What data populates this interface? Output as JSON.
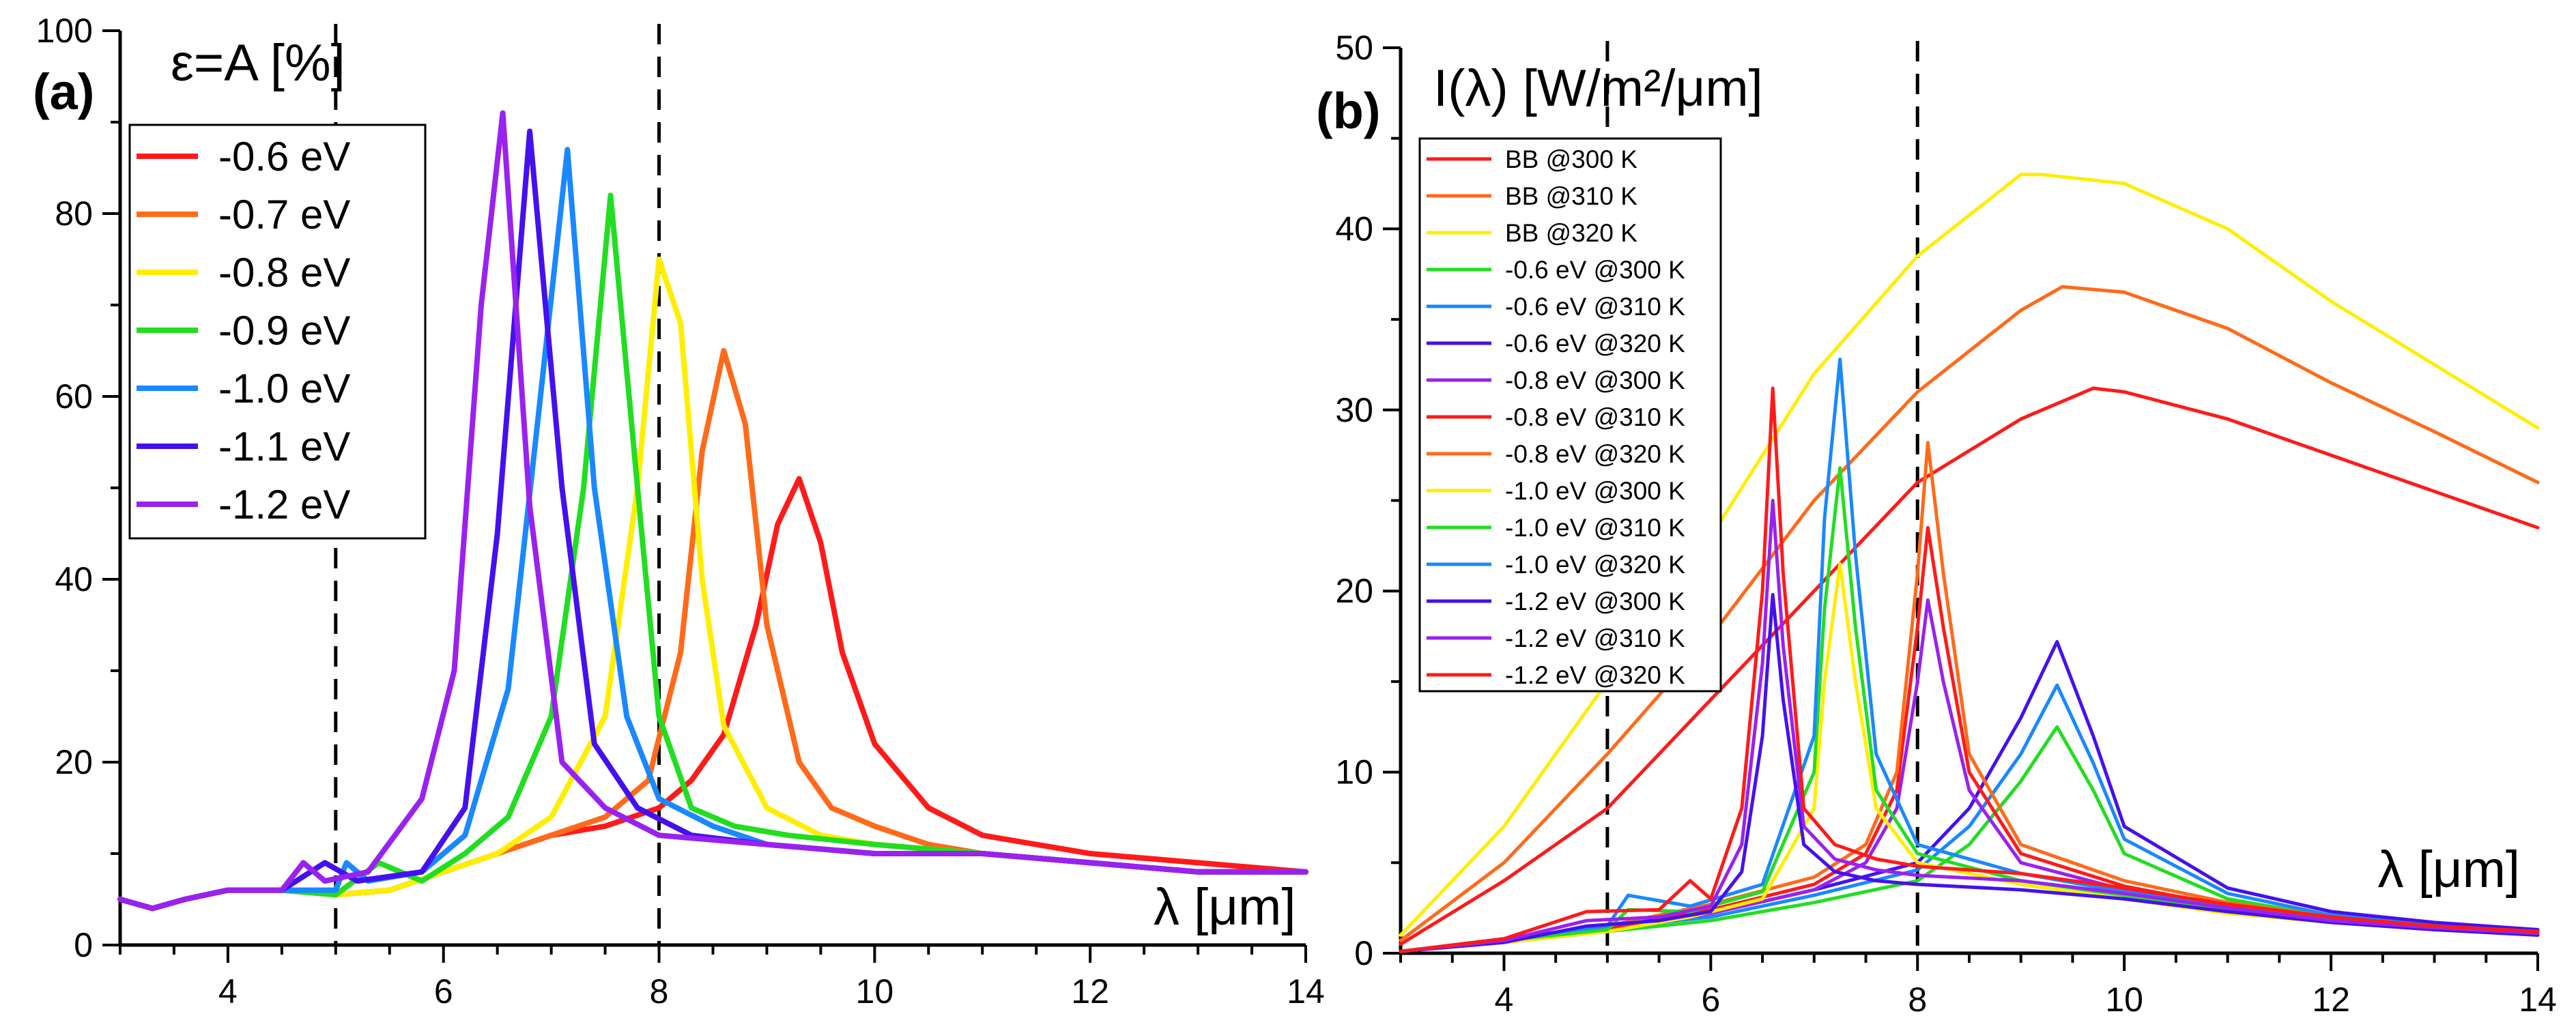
{
  "chart_data": [
    {
      "type": "line",
      "panel": "(a)",
      "ylabel": "ε=A [%]",
      "xlabel": "λ [μm]",
      "xlim": [
        3,
        14
      ],
      "ylim": [
        0,
        100
      ],
      "xticks": [
        4,
        6,
        8,
        10,
        12,
        14
      ],
      "yticks": [
        0,
        20,
        40,
        60,
        80,
        100
      ],
      "vlines": [
        5,
        8
      ],
      "legend_position": "top-left",
      "series": [
        {
          "name": "-0.6 eV",
          "color": "#ff1a1a",
          "x": [
            3,
            3.3,
            3.6,
            4,
            4.5,
            5,
            5.5,
            6,
            6.5,
            7,
            7.5,
            8,
            8.3,
            8.6,
            8.9,
            9.1,
            9.3,
            9.5,
            9.7,
            10,
            10.5,
            11,
            12,
            13,
            14
          ],
          "y": [
            5,
            4,
            5,
            6,
            6,
            5.5,
            6,
            8,
            10,
            12,
            13,
            15,
            18,
            23,
            35,
            46,
            51,
            44,
            32,
            22,
            15,
            12,
            10,
            9,
            8
          ]
        },
        {
          "name": "-0.7 eV",
          "color": "#ff6a1a",
          "x": [
            3,
            3.3,
            3.6,
            4,
            4.5,
            5,
            5.5,
            6,
            6.5,
            7,
            7.5,
            7.9,
            8.2,
            8.4,
            8.6,
            8.8,
            9,
            9.3,
            9.6,
            10,
            10.5,
            11,
            12,
            13,
            14
          ],
          "y": [
            5,
            4,
            5,
            6,
            6,
            5.5,
            6,
            8,
            10,
            12,
            14,
            18,
            32,
            54,
            65,
            57,
            35,
            20,
            15,
            13,
            11,
            10,
            9,
            8,
            8
          ]
        },
        {
          "name": "-0.8 eV",
          "color": "#ffee00",
          "x": [
            3,
            3.3,
            3.6,
            4,
            4.5,
            5,
            5.5,
            6,
            6.5,
            7,
            7.5,
            7.8,
            8,
            8.2,
            8.4,
            8.6,
            9,
            9.5,
            10,
            11,
            12,
            13,
            14
          ],
          "y": [
            5,
            4,
            5,
            6,
            6,
            5.5,
            6,
            8,
            10,
            14,
            25,
            50,
            75,
            68,
            40,
            24,
            15,
            12,
            11,
            10,
            9,
            8,
            8
          ]
        },
        {
          "name": "-0.9 eV",
          "color": "#22dd22",
          "x": [
            3,
            3.3,
            3.6,
            4,
            4.5,
            5,
            5.4,
            5.8,
            6.2,
            6.6,
            7,
            7.3,
            7.55,
            7.8,
            8,
            8.3,
            8.7,
            9.2,
            10,
            11,
            12,
            13,
            14
          ],
          "y": [
            5,
            4,
            5,
            6,
            6,
            5.5,
            9,
            7,
            10,
            14,
            25,
            50,
            82,
            50,
            25,
            15,
            13,
            12,
            11,
            10,
            9,
            8,
            8
          ]
        },
        {
          "name": "-1.0 eV",
          "color": "#1a88ff",
          "x": [
            3,
            3.3,
            3.6,
            4,
            4.5,
            5,
            5.1,
            5.3,
            5.8,
            6.2,
            6.6,
            6.9,
            7.15,
            7.4,
            7.7,
            8,
            8.5,
            9,
            10,
            11,
            12,
            13,
            14
          ],
          "y": [
            5,
            4,
            5,
            6,
            6,
            6,
            9,
            7,
            8,
            12,
            28,
            60,
            87,
            50,
            25,
            16,
            13,
            11,
            10,
            10,
            9,
            8,
            8
          ]
        },
        {
          "name": "-1.1 eV",
          "color": "#4411ee",
          "x": [
            3,
            3.3,
            3.6,
            4,
            4.5,
            4.9,
            5.2,
            5.8,
            6.2,
            6.5,
            6.8,
            7.1,
            7.4,
            7.8,
            8.3,
            9,
            10,
            11,
            12,
            13,
            14
          ],
          "y": [
            5,
            4,
            5,
            6,
            6,
            9,
            7,
            8,
            15,
            45,
            89,
            50,
            22,
            15,
            12,
            11,
            10,
            10,
            9,
            8,
            8
          ]
        },
        {
          "name": "-1.2 eV",
          "color": "#9922ee",
          "x": [
            3,
            3.3,
            3.6,
            4,
            4.5,
            4.7,
            4.9,
            5.3,
            5.8,
            6.1,
            6.35,
            6.55,
            6.8,
            7.1,
            7.5,
            8,
            9,
            10,
            11,
            12,
            13,
            14
          ],
          "y": [
            5,
            4,
            5,
            6,
            6,
            9,
            7,
            8,
            16,
            30,
            70,
            91,
            48,
            20,
            15,
            12,
            11,
            10,
            10,
            9,
            8,
            8
          ]
        }
      ]
    },
    {
      "type": "line",
      "panel": "(b)",
      "ylabel": "I(λ) [W/m²/μm]",
      "xlabel": "λ [μm]",
      "xlim": [
        3,
        14
      ],
      "ylim": [
        0,
        50
      ],
      "xticks": [
        4,
        6,
        8,
        10,
        12,
        14
      ],
      "yticks": [
        0,
        10,
        20,
        30,
        40,
        50
      ],
      "vlines": [
        5,
        8
      ],
      "legend_position": "top-left",
      "series": [
        {
          "name": "BB @300 K",
          "color": "#ff1a1a",
          "x": [
            3,
            4,
            5,
            6,
            7,
            8,
            9,
            9.7,
            10,
            11,
            12,
            13,
            14
          ],
          "y": [
            0.5,
            4,
            8,
            14,
            20,
            26,
            29.5,
            31.2,
            31,
            29.5,
            27.5,
            25.5,
            23.5
          ]
        },
        {
          "name": "BB @310 K",
          "color": "#ff6a1a",
          "x": [
            3,
            4,
            5,
            6,
            7,
            8,
            9,
            9.4,
            10,
            11,
            12,
            13,
            14
          ],
          "y": [
            0.7,
            5,
            11,
            17.5,
            25,
            31,
            35.5,
            36.8,
            36.5,
            34.5,
            31.5,
            28.8,
            26
          ]
        },
        {
          "name": "BB @320 K",
          "color": "#ffee00",
          "x": [
            3,
            4,
            5,
            6,
            7,
            8,
            9,
            9.2,
            10,
            11,
            12,
            13,
            14
          ],
          "y": [
            1,
            7,
            15,
            23,
            32,
            38.5,
            43,
            43,
            42.5,
            40,
            36,
            32.5,
            29
          ]
        },
        {
          "name": "-0.6 eV @300 K",
          "color": "#22dd22",
          "x": [
            3,
            4,
            5,
            6,
            7,
            8,
            8.5,
            9,
            9.35,
            9.7,
            10,
            11,
            12,
            13,
            14
          ],
          "y": [
            0.1,
            0.6,
            1.2,
            1.8,
            2.8,
            4,
            6,
            9.5,
            12.5,
            9,
            5.5,
            3,
            2,
            1.5,
            1.2
          ]
        },
        {
          "name": "-0.6 eV @310 K",
          "color": "#1a88ff",
          "x": [
            3,
            4,
            5,
            6,
            7,
            8,
            8.5,
            9,
            9.35,
            9.7,
            10,
            11,
            12,
            13,
            14
          ],
          "y": [
            0.1,
            0.7,
            1.4,
            2,
            3.2,
            4.6,
            7,
            11,
            14.8,
            10.5,
            6.3,
            3.3,
            2.1,
            1.6,
            1.3
          ]
        },
        {
          "name": "-0.6 eV @320 K",
          "color": "#4411ee",
          "x": [
            3,
            4,
            5,
            6,
            7,
            8,
            8.5,
            9,
            9.35,
            9.7,
            10,
            11,
            12,
            13,
            14
          ],
          "y": [
            0.1,
            0.8,
            1.5,
            2.2,
            3.5,
            5,
            8,
            13,
            17.2,
            12,
            7,
            3.6,
            2.3,
            1.7,
            1.3
          ]
        },
        {
          "name": "-0.8 eV @300 K",
          "color": "#9922ee",
          "x": [
            3,
            4,
            5,
            6,
            7,
            7.5,
            7.8,
            8,
            8.1,
            8.25,
            8.5,
            9,
            10,
            11,
            12,
            13,
            14
          ],
          "y": [
            0.1,
            0.6,
            1.2,
            2.2,
            3.5,
            5,
            8,
            15,
            19.5,
            15,
            9,
            5,
            3.5,
            2.5,
            1.8,
            1.4,
            1.1
          ]
        },
        {
          "name": "-0.8 eV @310 K",
          "color": "#ff1a1a",
          "x": [
            3,
            4,
            5,
            6,
            7,
            7.5,
            7.8,
            8,
            8.1,
            8.25,
            8.5,
            9,
            10,
            11,
            12,
            13,
            14
          ],
          "y": [
            0.1,
            0.7,
            1.3,
            2.4,
            3.8,
            5.5,
            9,
            18,
            23.5,
            18,
            10,
            5.5,
            3.7,
            2.6,
            1.9,
            1.4,
            1.1
          ]
        },
        {
          "name": "-0.8 eV @320 K",
          "color": "#ff6a1a",
          "x": [
            3,
            4,
            5,
            6,
            7,
            7.5,
            7.8,
            8,
            8.1,
            8.25,
            8.5,
            9,
            10,
            11,
            12,
            13,
            14
          ],
          "y": [
            0.1,
            0.8,
            1.5,
            2.7,
            4.2,
            6,
            10,
            21,
            28.2,
            21,
            11,
            6,
            4,
            2.8,
            2,
            1.5,
            1.2
          ]
        },
        {
          "name": "-1.0 eV @300 K",
          "color": "#ffee00",
          "x": [
            3,
            4,
            5,
            5.8,
            6.5,
            7,
            7.1,
            7.25,
            7.4,
            7.6,
            8,
            9,
            10,
            11,
            12,
            13,
            14
          ],
          "y": [
            0.1,
            0.6,
            1.2,
            2,
            3,
            8,
            15,
            21.5,
            15,
            8,
            5,
            3.8,
            3,
            2.2,
            1.7,
            1.3,
            1
          ]
        },
        {
          "name": "-1.0 eV @310 K",
          "color": "#22dd22",
          "x": [
            3,
            4,
            5,
            5.2,
            5.8,
            6.5,
            7,
            7.1,
            7.25,
            7.4,
            7.6,
            8,
            9,
            10,
            11,
            12,
            13,
            14
          ],
          "y": [
            0.1,
            0.7,
            1.3,
            2.4,
            2.3,
            3.4,
            10,
            19,
            26.8,
            18,
            9,
            5.5,
            4,
            3.2,
            2.4,
            1.8,
            1.4,
            1.1
          ]
        },
        {
          "name": "-1.0 eV @320 K",
          "color": "#1a88ff",
          "x": [
            3,
            4,
            5,
            5.2,
            5.8,
            6.5,
            7,
            7.1,
            7.25,
            7.4,
            7.6,
            8,
            9,
            10,
            11,
            12,
            13,
            14
          ],
          "y": [
            0.1,
            0.8,
            1.5,
            3.2,
            2.6,
            3.8,
            12,
            24,
            32.8,
            22,
            11,
            6,
            4.4,
            3.4,
            2.5,
            1.9,
            1.4,
            1.1
          ]
        },
        {
          "name": "-1.2 eV @300 K",
          "color": "#4411ee",
          "x": [
            3,
            4,
            4.8,
            5.5,
            6,
            6.3,
            6.5,
            6.6,
            6.7,
            6.9,
            7.2,
            7.6,
            8,
            9,
            10,
            11,
            12,
            13,
            14
          ],
          "y": [
            0.1,
            0.6,
            1.5,
            1.8,
            2.3,
            4.5,
            12,
            19.8,
            14,
            6,
            4.5,
            4,
            3.8,
            3.5,
            3,
            2.3,
            1.7,
            1.3,
            1
          ]
        },
        {
          "name": "-1.2 eV @310 K",
          "color": "#9922ee",
          "x": [
            3,
            4,
            4.8,
            5.5,
            6,
            6.3,
            6.5,
            6.6,
            6.7,
            6.9,
            7.2,
            7.6,
            8,
            9,
            10,
            11,
            12,
            13,
            14
          ],
          "y": [
            0.1,
            0.7,
            1.8,
            2,
            2.6,
            6,
            16,
            25,
            17,
            7,
            5.2,
            4.6,
            4.3,
            4,
            3.3,
            2.5,
            1.8,
            1.4,
            1.1
          ]
        },
        {
          "name": "-1.2 eV @320 K",
          "color": "#ff1a1a",
          "x": [
            3,
            4,
            4.8,
            5.5,
            5.8,
            6,
            6.3,
            6.5,
            6.6,
            6.7,
            6.9,
            7.2,
            7.6,
            8,
            9,
            10,
            11,
            12,
            13,
            14
          ],
          "y": [
            0.1,
            0.8,
            2.3,
            2.4,
            4,
            3,
            8,
            20,
            31.2,
            21,
            8,
            6,
            5.2,
            4.8,
            4.4,
            3.6,
            2.7,
            2,
            1.5,
            1.2
          ]
        }
      ]
    }
  ]
}
